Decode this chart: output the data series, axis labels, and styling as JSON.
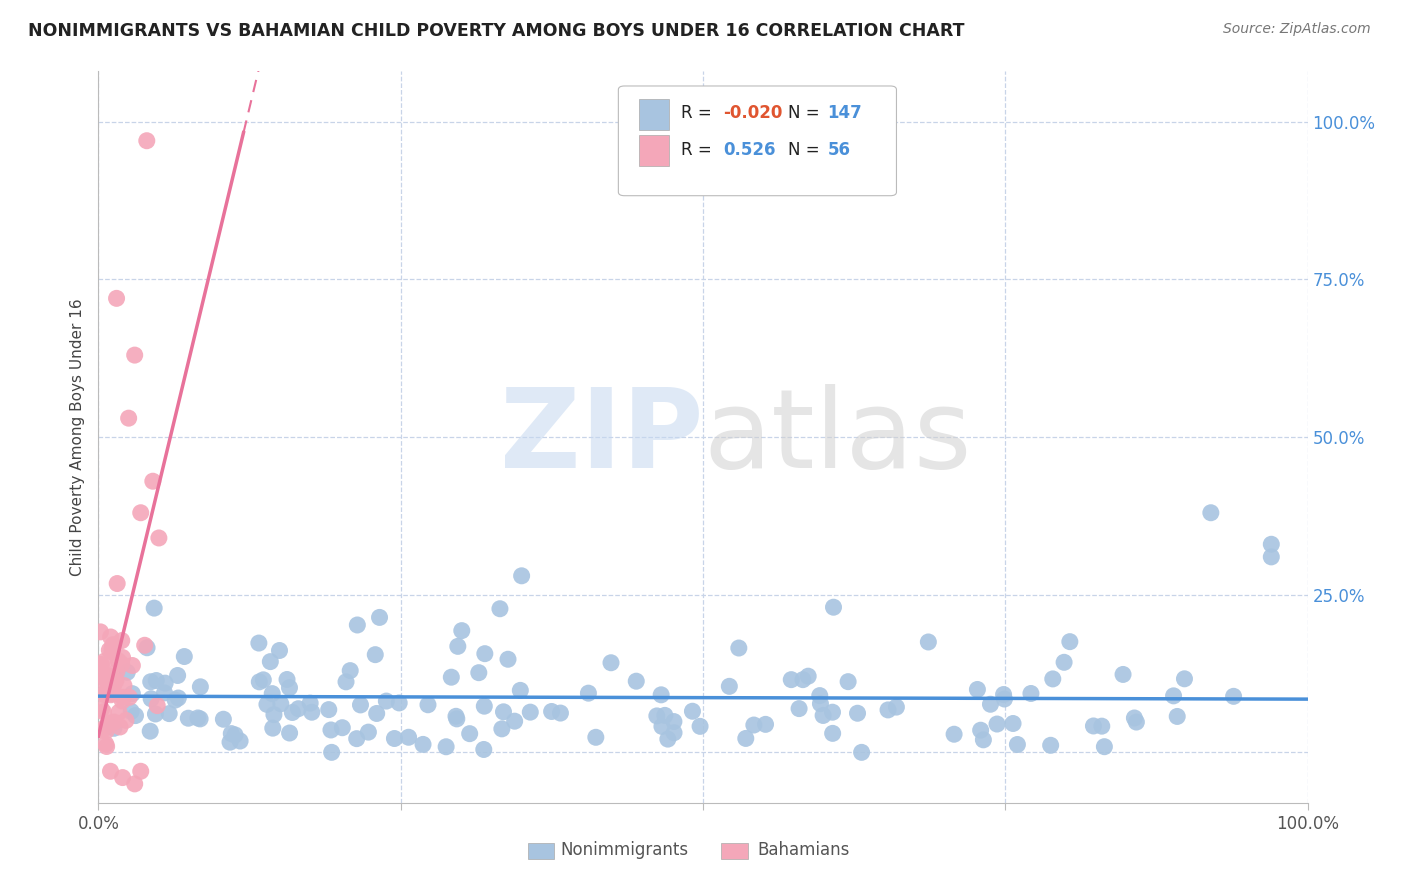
{
  "title": "NONIMMIGRANTS VS BAHAMIAN CHILD POVERTY AMONG BOYS UNDER 16 CORRELATION CHART",
  "source": "Source: ZipAtlas.com",
  "ylabel": "Child Poverty Among Boys Under 16",
  "legend_nonimm": {
    "R": "-0.020",
    "N": "147"
  },
  "legend_bah": {
    "R": "0.526",
    "N": "56"
  },
  "nonimm_color": "#a8c4e0",
  "bah_color": "#f4a7b9",
  "nonimm_line_color": "#4a90d9",
  "bah_line_color": "#e8729a",
  "watermark_zip_color": "#c5d8f0",
  "watermark_atlas_color": "#d0d0d0",
  "background_color": "#ffffff",
  "grid_color": "#c8d4e8",
  "legend_R_neg_color": "#e05530",
  "legend_R_pos_color": "#4a90d9",
  "legend_N_color": "#4a90d9",
  "ytick_color": "#4a90d9",
  "nonimm_R": -0.02,
  "nonimm_N": 147,
  "bah_R": 0.526,
  "bah_N": 56
}
